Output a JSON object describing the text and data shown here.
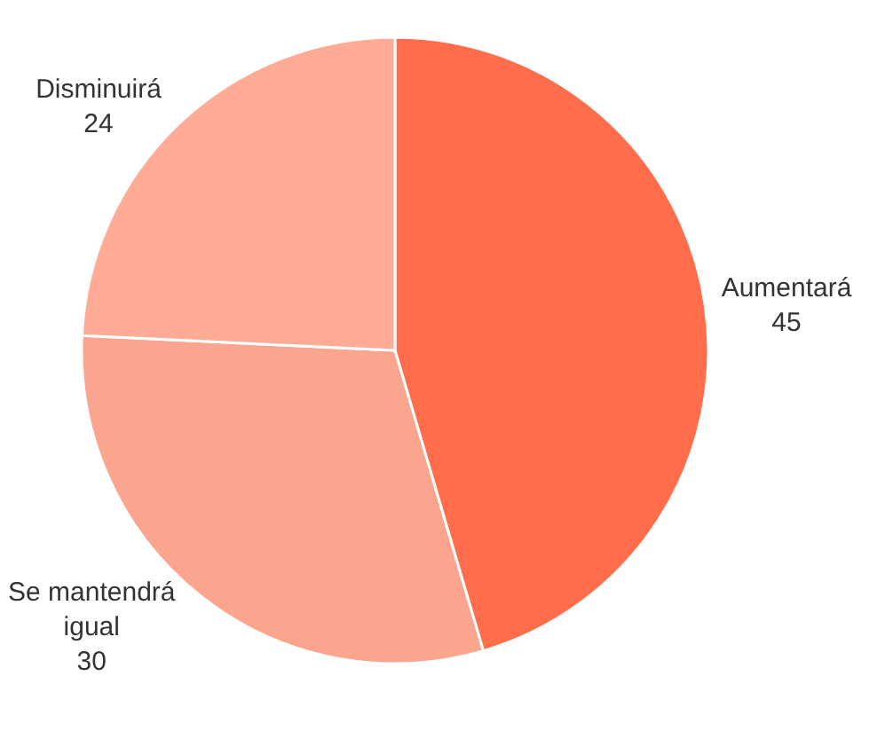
{
  "chart_data": {
    "type": "pie",
    "categories": [
      "Aumentará",
      "Se mantendrá igual",
      "Disminuirá"
    ],
    "values": [
      45,
      30,
      24
    ],
    "colors": [
      "#ff6d4b",
      "#fca58e",
      "#ffab96"
    ],
    "data_labels": true,
    "legend": false
  }
}
